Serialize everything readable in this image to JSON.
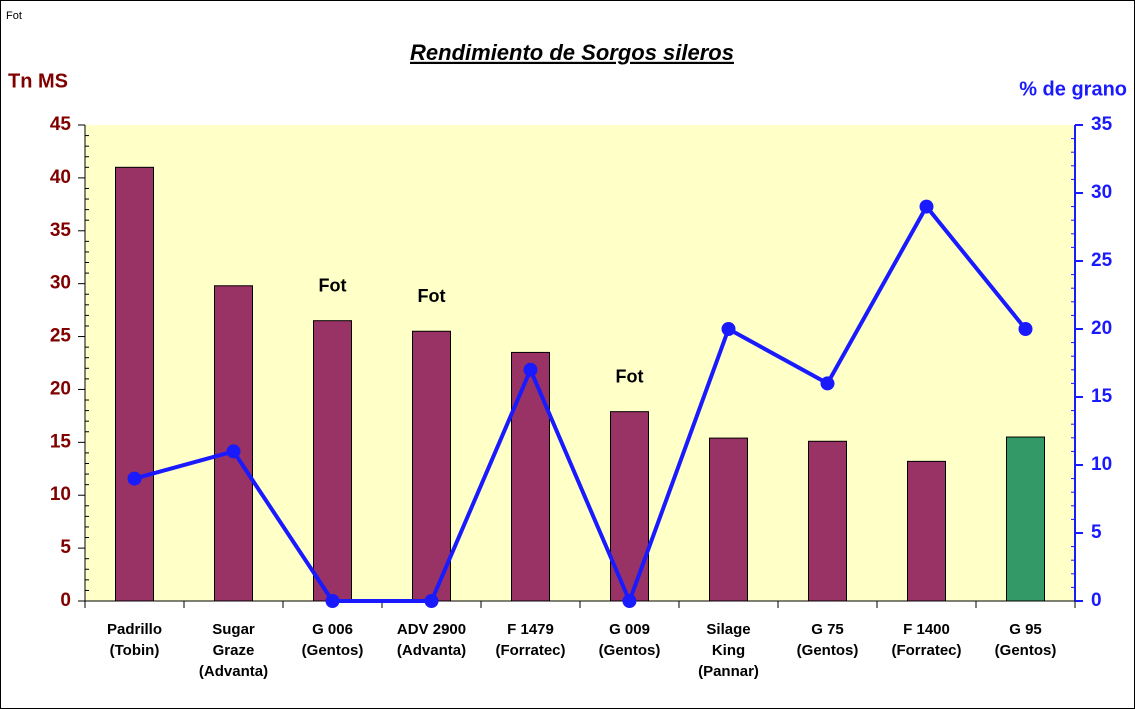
{
  "chart_data": {
    "type": "bar_line",
    "corner_note": "Fot",
    "title": "Rendimiento de Sorgos sileros",
    "y_label": "Tn MS",
    "y2_label": "% de grano",
    "categories": [
      [
        "Padrillo",
        "(Tobin)"
      ],
      [
        "Sugar",
        "Graze",
        "(Advanta)"
      ],
      [
        "G 006",
        "(Gentos)"
      ],
      [
        "ADV 2900",
        "(Advanta)"
      ],
      [
        "F 1479",
        "(Forratec)"
      ],
      [
        "G 009",
        "(Gentos)"
      ],
      [
        "Silage",
        "King",
        "(Pannar)"
      ],
      [
        "G 75",
        "(Gentos)"
      ],
      [
        "F 1400",
        "(Forratec)"
      ],
      [
        "G 95",
        "(Gentos)"
      ]
    ],
    "series": [
      {
        "type": "bar",
        "values": [
          41,
          29.8,
          26.5,
          25.5,
          23.5,
          17.9,
          15.4,
          15.1,
          13.2,
          15.5
        ],
        "colors": [
          "#993366",
          "#993366",
          "#993366",
          "#993366",
          "#993366",
          "#993366",
          "#993366",
          "#993366",
          "#993366",
          "#339966"
        ],
        "bar_labels": [
          null,
          null,
          "Fot",
          "Fot",
          null,
          "Fot",
          null,
          null,
          null,
          null
        ]
      },
      {
        "type": "line",
        "axis": "y2",
        "color": "#1a1aff",
        "values": [
          9,
          11,
          0,
          0,
          17,
          0,
          20,
          16,
          29,
          20
        ]
      }
    ],
    "ylim": [
      0,
      45
    ],
    "yticks": [
      0,
      5,
      10,
      15,
      20,
      25,
      30,
      35,
      40,
      45
    ],
    "y2lim": [
      0,
      35
    ],
    "y2ticks": [
      0,
      5,
      10,
      15,
      20,
      25,
      30,
      35
    ],
    "y_color": "#800000",
    "y2_color": "#1a1aff",
    "plot_background": "#ffffc8"
  }
}
